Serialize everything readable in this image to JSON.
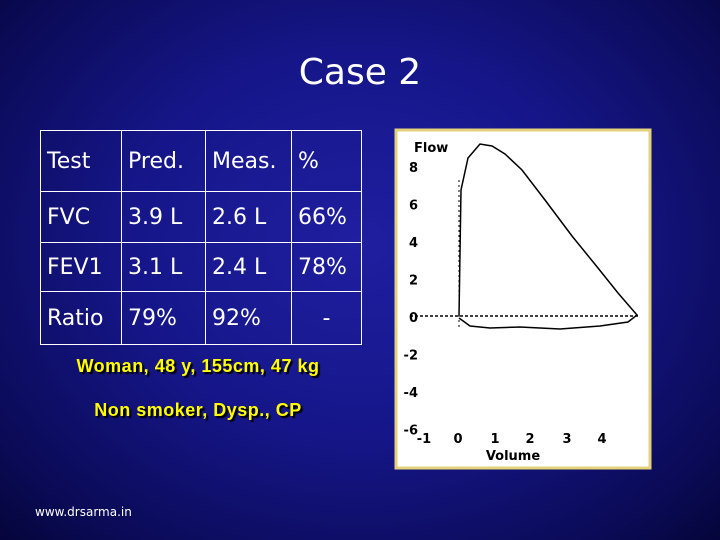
{
  "title": "Case 2",
  "table": {
    "rows": [
      [
        "Test",
        "Pred.",
        "Meas.",
        "%"
      ],
      [
        "FVC",
        "3.9 L",
        "2.6 L",
        "66%"
      ],
      [
        "FEV1",
        "3.1 L",
        "2.4 L",
        "78%"
      ],
      [
        "Ratio",
        "79%",
        "92%",
        "-"
      ]
    ]
  },
  "notes": [
    "Woman, 48 y, 155cm, 47 kg",
    "Non smoker, Dysp., CP"
  ],
  "figure": {
    "y_label": "Flow",
    "y_ticks": [
      "8",
      "6",
      "4",
      "2",
      "0",
      "-2",
      "-4",
      "-6"
    ],
    "x_ticks": [
      "-1",
      "0",
      "1",
      "2",
      "3",
      "4"
    ],
    "x_label": "Volume"
  },
  "footer": "www.drsarma.in"
}
